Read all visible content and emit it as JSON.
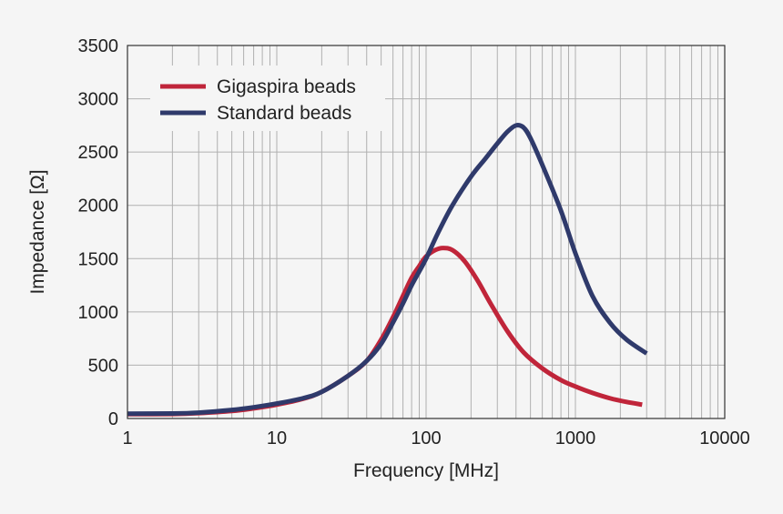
{
  "chart_data": {
    "type": "line",
    "title": "",
    "xlabel": "Frequency [MHz]",
    "ylabel": "Impedance [Ω]",
    "x_scale": "log",
    "xlim": [
      1,
      10000
    ],
    "ylim": [
      0,
      3500
    ],
    "grid": true,
    "legend_position": "top-left",
    "x_ticks": [
      1,
      10,
      100,
      1000,
      10000
    ],
    "x_tick_labels": [
      "1",
      "10",
      "100",
      "1000",
      "10000"
    ],
    "y_ticks": [
      0,
      500,
      1000,
      1500,
      2000,
      2500,
      3000,
      3500
    ],
    "y_tick_labels": [
      "0",
      "500",
      "1000",
      "1500",
      "2000",
      "2500",
      "3000",
      "3500"
    ],
    "series": [
      {
        "name": "Gigaspira beads",
        "color": "#c0253a",
        "x": [
          1,
          2,
          3,
          5,
          7,
          10,
          15,
          20,
          30,
          40,
          50,
          60,
          70,
          80,
          90,
          100,
          115,
          130,
          150,
          180,
          220,
          270,
          350,
          450,
          600,
          800,
          1000,
          1300,
          1700,
          2200,
          2800
        ],
        "y": [
          40,
          42,
          50,
          70,
          95,
          130,
          185,
          250,
          400,
          540,
          740,
          950,
          1150,
          1320,
          1430,
          1520,
          1580,
          1600,
          1580,
          1480,
          1300,
          1080,
          820,
          620,
          470,
          360,
          300,
          240,
          190,
          155,
          130
        ]
      },
      {
        "name": "Standard beads",
        "color": "#2f3a6b",
        "x": [
          1,
          2,
          3,
          5,
          7,
          10,
          15,
          20,
          30,
          40,
          50,
          60,
          70,
          80,
          90,
          100,
          120,
          150,
          200,
          250,
          300,
          350,
          400,
          450,
          500,
          600,
          800,
          1000,
          1300,
          1700,
          2200,
          3000
        ],
        "y": [
          45,
          47,
          55,
          80,
          105,
          140,
          190,
          250,
          400,
          540,
          700,
          900,
          1080,
          1250,
          1380,
          1500,
          1740,
          2000,
          2270,
          2440,
          2580,
          2690,
          2750,
          2730,
          2630,
          2380,
          1950,
          1550,
          1150,
          900,
          740,
          610
        ]
      }
    ]
  }
}
